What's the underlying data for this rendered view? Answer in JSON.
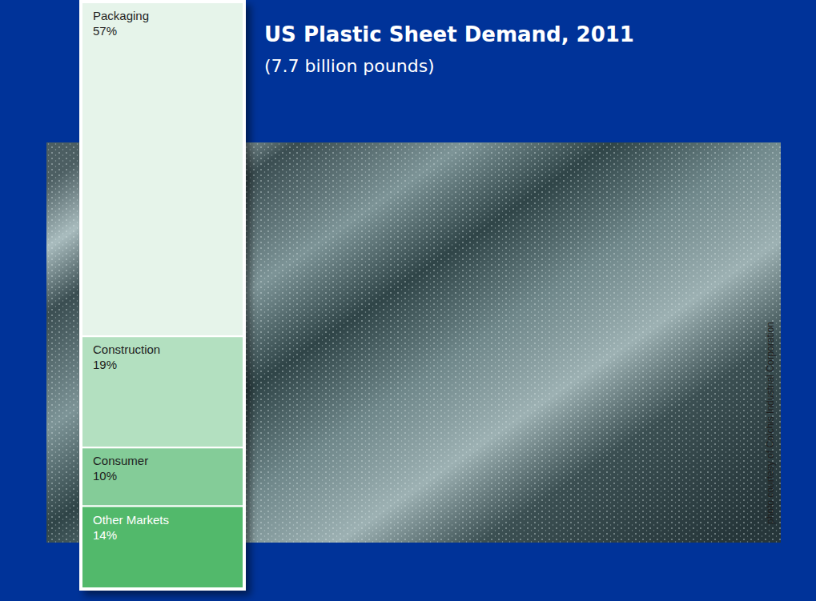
{
  "chart_data": {
    "type": "bar",
    "title": "US Plastic Sheet Demand, 2011",
    "subtitle": "(7.7 billion pounds)",
    "annotations": [
      "photo courtesy of Colchis Industrial Corporation"
    ],
    "categories": [
      null
    ],
    "stacked": true,
    "data_labels": true,
    "tick_labels": false,
    "ylim": [
      0,
      100
    ],
    "yticks": [],
    "series": [
      {
        "name": "Packaging",
        "color": "#e6f4ea",
        "values": [
          57
        ],
        "value_labels": [
          "57%"
        ]
      },
      {
        "name": "Construction",
        "color": "#b3e0c0",
        "values": [
          19
        ],
        "value_labels": [
          "19%"
        ]
      },
      {
        "name": "Consumer",
        "color": "#84cc98",
        "values": [
          10
        ],
        "value_labels": [
          "10%"
        ]
      },
      {
        "name": "Other Markets",
        "color": "#52b96b",
        "values": [
          14
        ],
        "value_labels": [
          "14%"
        ]
      }
    ]
  }
}
